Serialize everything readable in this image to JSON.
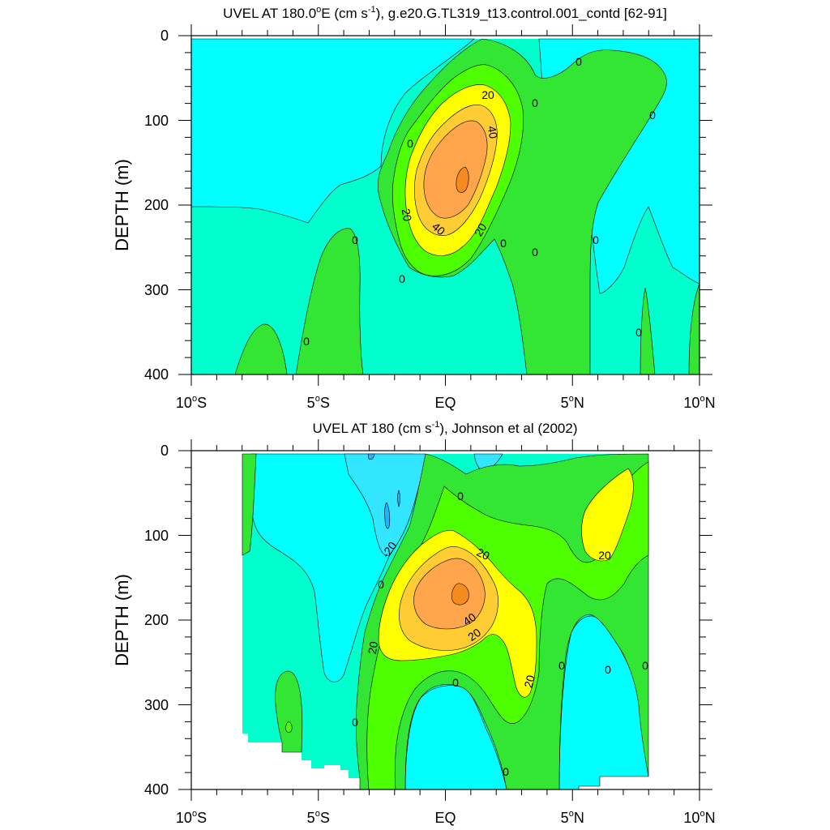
{
  "chart_data": [
    {
      "type": "contour",
      "title_parts": [
        "UVEL AT 180.0",
        "o",
        "E (cm s",
        "-1",
        "), g.e20.G.TL319_t13.control.001_contd [62-91]"
      ],
      "ylabel": "DEPTH (m)",
      "xlabel": "",
      "xlim": [
        -10,
        10
      ],
      "ylim": [
        0,
        400
      ],
      "y_inverted": true,
      "x_ticks": [
        {
          "value": -10,
          "num": "10",
          "hem": "S"
        },
        {
          "value": -5,
          "num": "5",
          "hem": "S"
        },
        {
          "value": 0,
          "num": "EQ",
          "hem": ""
        },
        {
          "value": 5,
          "num": "5",
          "hem": "N"
        },
        {
          "value": 10,
          "num": "10",
          "hem": "N"
        }
      ],
      "y_ticks": [
        0,
        100,
        200,
        300,
        400
      ],
      "data_coverage": {
        "lat_range": [
          -10,
          10
        ],
        "depth_range": [
          5,
          400
        ]
      },
      "max_eastward_velocity_cm_s": 60,
      "max_location": {
        "lat": 0.7,
        "depth": 175
      },
      "contour_levels_cm_s": [
        -20,
        -10,
        0,
        10,
        20,
        30,
        40,
        50
      ],
      "contour_labels": [
        {
          "lat": 1.8,
          "depth": 112,
          "text": "20"
        },
        {
          "lat": 1.8,
          "depth": 153,
          "text": "40"
        },
        {
          "lat": -1.5,
          "depth": 212,
          "text": "20"
        },
        {
          "lat": -0.3,
          "depth": 228,
          "text": "40"
        },
        {
          "lat": 1.5,
          "depth": 228,
          "text": "20"
        },
        {
          "lat": -1.4,
          "depth": 128,
          "text": "0"
        },
        {
          "lat": 2.7,
          "depth": 78,
          "text": "0"
        },
        {
          "lat": 5.2,
          "depth": 30,
          "text": "0"
        },
        {
          "lat": 8.1,
          "depth": 92,
          "text": "0"
        },
        {
          "lat": -3.6,
          "depth": 242,
          "text": "0"
        },
        {
          "lat": 2.4,
          "depth": 243,
          "text": "0"
        },
        {
          "lat": 3.6,
          "depth": 255,
          "text": "0"
        },
        {
          "lat": 5.9,
          "depth": 242,
          "text": "0"
        },
        {
          "lat": -1.7,
          "depth": 288,
          "text": "0"
        },
        {
          "lat": -5.5,
          "depth": 358,
          "text": "0"
        },
        {
          "lat": 7.6,
          "depth": 350,
          "text": "0"
        }
      ]
    },
    {
      "type": "contour",
      "title_parts": [
        "UVEL AT 180 (cm s",
        "-1",
        "), Johnson et al (2002)"
      ],
      "ylabel": "DEPTH (m)",
      "xlabel": "",
      "xlim": [
        -10,
        10
      ],
      "ylim": [
        0,
        400
      ],
      "y_inverted": true,
      "x_ticks": [
        {
          "value": -10,
          "num": "10",
          "hem": "S"
        },
        {
          "value": -5,
          "num": "5",
          "hem": "S"
        },
        {
          "value": 0,
          "num": "EQ",
          "hem": ""
        },
        {
          "value": 5,
          "num": "5",
          "hem": "N"
        },
        {
          "value": 10,
          "num": "10",
          "hem": "N"
        }
      ],
      "y_ticks": [
        0,
        100,
        200,
        300,
        400
      ],
      "data_coverage": {
        "lat_range": [
          -8,
          8
        ],
        "depth_range": [
          5,
          400
        ]
      },
      "max_eastward_velocity_cm_s": 60,
      "max_location": {
        "lat": 0.7,
        "depth": 172
      },
      "contour_levels_cm_s": [
        -30,
        -20,
        -10,
        0,
        10,
        20,
        30,
        40,
        50
      ],
      "contour_labels": [
        {
          "lat": -2.1,
          "depth": 113,
          "text": "-20"
        },
        {
          "lat": 1.4,
          "depth": 120,
          "text": "20"
        },
        {
          "lat": 1.0,
          "depth": 200,
          "text": "40"
        },
        {
          "lat": 1.2,
          "depth": 215,
          "text": "20"
        },
        {
          "lat": -2.7,
          "depth": 228,
          "text": "20"
        },
        {
          "lat": 3.4,
          "depth": 275,
          "text": "20"
        },
        {
          "lat": 6.3,
          "depth": 122,
          "text": "20"
        },
        {
          "lat": 0.6,
          "depth": 55,
          "text": "0"
        },
        {
          "lat": -2.5,
          "depth": 158,
          "text": "0"
        },
        {
          "lat": 0.4,
          "depth": 272,
          "text": "0"
        },
        {
          "lat": 4.6,
          "depth": 253,
          "text": "0"
        },
        {
          "lat": 6.3,
          "depth": 257,
          "text": "0"
        },
        {
          "lat": 7.9,
          "depth": 253,
          "text": "0"
        },
        {
          "lat": -3.6,
          "depth": 318,
          "text": "0"
        },
        {
          "lat": 2.4,
          "depth": 376,
          "text": "0"
        }
      ]
    }
  ],
  "colors": {
    "neg30": "#1eb4ff",
    "neg20": "#33e6ff",
    "neg10": "#00ffff",
    "zero": "#00ffcc",
    "pos10": "#33e633",
    "pos20": "#4dff00",
    "pos30": "#ffff00",
    "pos40": "#ffcc33",
    "pos50": "#ffa64d",
    "pos60": "#f58a1f"
  }
}
